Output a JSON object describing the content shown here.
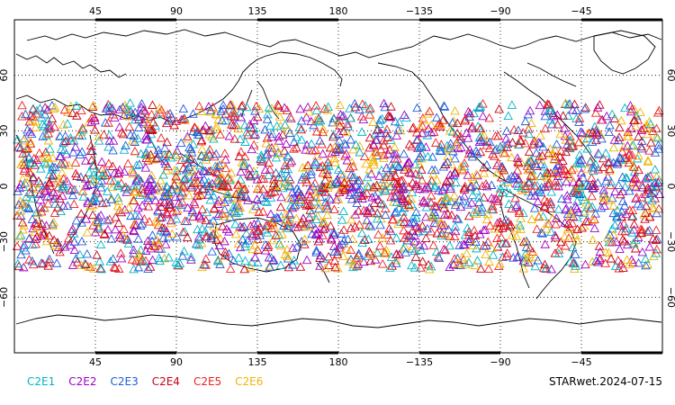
{
  "map": {
    "projection": "cylindrical equidistant, 0°E to 360°E, 90°S to 90°N",
    "lon_ticks": [
      "45",
      "90",
      "135",
      "180",
      "−135",
      "−90",
      "−45"
    ],
    "lat_ticks": [
      "60",
      "30",
      "0",
      "−30",
      "−60"
    ],
    "grid": "dotted",
    "marker": "open triangle",
    "coastline_color": "#000000"
  },
  "legend": [
    {
      "label": "C2E1",
      "color": "#00b4c8"
    },
    {
      "label": "C2E2",
      "color": "#a000c8"
    },
    {
      "label": "C2E3",
      "color": "#1e5adc"
    },
    {
      "label": "C2E4",
      "color": "#c80014"
    },
    {
      "label": "C2E5",
      "color": "#f01e1e"
    },
    {
      "label": "C2E6",
      "color": "#f0b400"
    }
  ],
  "caption": "STARwet.2024-07-15",
  "observation_band": {
    "lat_min": -45,
    "lat_max": 45,
    "lon_min": 0,
    "lon_max": 360
  }
}
